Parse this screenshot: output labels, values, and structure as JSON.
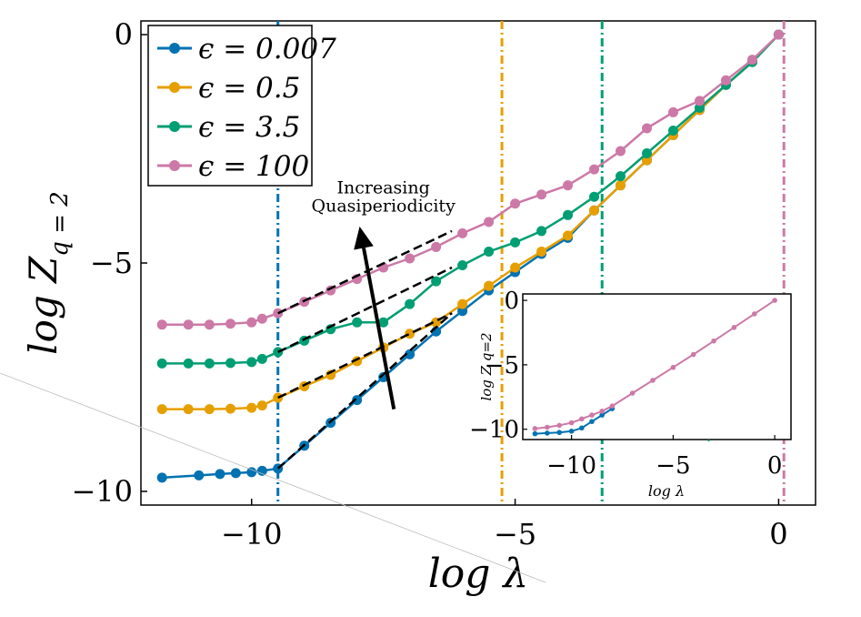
{
  "chart_data": [
    {
      "type": "line",
      "xlabel": "log λ",
      "ylabel_main": "log Z",
      "ylabel_sub": "q = 2",
      "xlim": [
        -12.1,
        0.7
      ],
      "ylim": [
        -10.3,
        0.3
      ],
      "x_ticks": [
        {
          "value": -10,
          "label": "−10"
        },
        {
          "value": -5,
          "label": "−5"
        },
        {
          "value": 0,
          "label": "0"
        }
      ],
      "y_ticks": [
        {
          "value": 0,
          "label": "0"
        },
        {
          "value": -5,
          "label": "−5"
        },
        {
          "value": -10,
          "label": "−10"
        }
      ],
      "grid": false,
      "legend_position": "top-left",
      "series": [
        {
          "name": "ε = 0.007",
          "legend_label": "ϵ = 0.007",
          "color": "#0072B2",
          "x": [
            -11.7,
            -11.0,
            -10.6,
            -10.3,
            -10.0,
            -9.8,
            -9.5,
            -9.0,
            -8.5,
            -8.0,
            -7.5,
            -7.0,
            -6.5,
            -6.0,
            -5.5,
            -5.0,
            -4.5,
            -4.0,
            -3.5,
            -3.0,
            -2.5,
            -2.0,
            -1.5,
            -1.0,
            -0.5,
            0.0
          ],
          "y": [
            -9.7,
            -9.65,
            -9.62,
            -9.6,
            -9.58,
            -9.55,
            -9.5,
            -9.0,
            -8.5,
            -8.0,
            -7.5,
            -7.0,
            -6.5,
            -6.05,
            -5.6,
            -5.2,
            -4.8,
            -4.45,
            -3.85,
            -3.3,
            -2.75,
            -2.2,
            -1.65,
            -1.1,
            -0.6,
            0.0
          ]
        },
        {
          "name": "ε = 0.5",
          "legend_label": "ϵ = 0.5",
          "color": "#E69F00",
          "x": [
            -11.7,
            -11.2,
            -10.8,
            -10.4,
            -10.0,
            -9.8,
            -9.5,
            -9.0,
            -8.5,
            -8.0,
            -7.5,
            -7.0,
            -6.5,
            -6.0,
            -5.5,
            -5.0,
            -4.5,
            -4.0,
            -3.5,
            -3.0,
            -2.5,
            -2.0,
            -1.5,
            -1.0,
            -0.5,
            0.0
          ],
          "y": [
            -8.2,
            -8.2,
            -8.2,
            -8.19,
            -8.17,
            -8.12,
            -7.95,
            -7.7,
            -7.45,
            -7.15,
            -6.85,
            -6.55,
            -6.3,
            -5.9,
            -5.5,
            -5.1,
            -4.75,
            -4.4,
            -3.85,
            -3.3,
            -2.75,
            -2.2,
            -1.65,
            -1.1,
            -0.6,
            0.0
          ]
        },
        {
          "name": "ε = 3.5",
          "legend_label": "ϵ = 3.5",
          "color": "#009E73",
          "x": [
            -11.7,
            -11.2,
            -10.8,
            -10.4,
            -10.0,
            -9.8,
            -9.5,
            -9.0,
            -8.5,
            -8.0,
            -7.5,
            -7.0,
            -6.5,
            -6.0,
            -5.5,
            -5.0,
            -4.5,
            -4.0,
            -3.5,
            -3.0,
            -2.5,
            -2.0,
            -1.5,
            -1.0,
            -0.5,
            0.0
          ],
          "y": [
            -7.2,
            -7.2,
            -7.2,
            -7.19,
            -7.17,
            -7.1,
            -6.95,
            -6.7,
            -6.45,
            -6.3,
            -6.3,
            -5.9,
            -5.4,
            -5.05,
            -4.75,
            -4.55,
            -4.3,
            -3.95,
            -3.55,
            -3.1,
            -2.6,
            -2.1,
            -1.6,
            -1.1,
            -0.6,
            0.0
          ]
        },
        {
          "name": "ε = 100",
          "legend_label": "ϵ = 100",
          "color": "#CC79A7",
          "x": [
            -11.7,
            -11.2,
            -10.8,
            -10.4,
            -10.0,
            -9.8,
            -9.5,
            -9.0,
            -8.5,
            -8.0,
            -7.5,
            -7.0,
            -6.5,
            -6.0,
            -5.5,
            -5.0,
            -4.5,
            -4.0,
            -3.5,
            -3.0,
            -2.5,
            -2.0,
            -1.5,
            -1.0,
            -0.5,
            0.0
          ],
          "y": [
            -6.35,
            -6.35,
            -6.35,
            -6.33,
            -6.3,
            -6.22,
            -6.1,
            -5.85,
            -5.6,
            -5.35,
            -5.1,
            -4.9,
            -4.65,
            -4.35,
            -4.1,
            -3.7,
            -3.5,
            -3.3,
            -2.95,
            -2.55,
            -2.05,
            -1.7,
            -1.45,
            -1.0,
            -0.55,
            0.0
          ]
        }
      ],
      "vlines": [
        {
          "x": -9.5,
          "color": "#0072B2"
        },
        {
          "x": -5.25,
          "color": "#E69F00"
        },
        {
          "x": -3.35,
          "color": "#009E73"
        },
        {
          "x": 0.1,
          "color": "#CC79A7"
        }
      ],
      "fit_lines": [
        {
          "x": [
            -9.5,
            -6.2
          ],
          "y": [
            -9.5,
            -6.1
          ]
        },
        {
          "x": [
            -9.5,
            -6.2
          ],
          "y": [
            -7.95,
            -6.1
          ]
        },
        {
          "x": [
            -9.5,
            -6.2
          ],
          "y": [
            -6.95,
            -5.1
          ]
        },
        {
          "x": [
            -9.5,
            -6.2
          ],
          "y": [
            -6.1,
            -4.3
          ]
        }
      ],
      "annotation": {
        "line1": "Increasing",
        "line2": "Quasiperiodicity",
        "arrow_from": {
          "x": -7.3,
          "y": -8.2
        },
        "arrow_to": {
          "x": -7.95,
          "y": -4.2
        },
        "text_at": {
          "x": -7.5,
          "y": -3.75
        }
      }
    },
    {
      "type": "line",
      "name": "inset",
      "xlabel": "log λ",
      "ylabel": "log Z q=2",
      "xlim": [
        -12.4,
        0.8
      ],
      "ylim": [
        -10.8,
        0.5
      ],
      "x_ticks": [
        {
          "value": -10,
          "label": "−10"
        },
        {
          "value": -5,
          "label": "−5"
        },
        {
          "value": 0,
          "label": "0"
        }
      ],
      "y_ticks": [
        {
          "value": 0,
          "label": "0"
        },
        {
          "value": -5,
          "label": "−5"
        },
        {
          "value": -10,
          "label": "−10"
        }
      ],
      "series": [
        {
          "name": "ε = 0.007",
          "color": "#0072B2",
          "x": [
            -11.8,
            -11.2,
            -10.6,
            -10.0,
            -9.5,
            -9.0,
            -8.5,
            -8.0
          ],
          "y": [
            -10.35,
            -10.3,
            -10.25,
            -10.15,
            -9.9,
            -9.4,
            -8.9,
            -8.4
          ]
        },
        {
          "name": "ε = 100",
          "color": "#CC79A7",
          "x": [
            -11.8,
            -11.2,
            -10.6,
            -10.0,
            -9.5,
            -9.0,
            -8.5,
            -8.0,
            -7.0,
            -6.0,
            -5.0,
            -4.0,
            -3.0,
            -2.0,
            -1.0,
            0.0
          ],
          "y": [
            -9.95,
            -9.85,
            -9.7,
            -9.5,
            -9.2,
            -8.9,
            -8.6,
            -8.2,
            -7.2,
            -6.2,
            -5.2,
            -4.2,
            -3.15,
            -2.1,
            -1.05,
            0.0
          ]
        }
      ],
      "vlines": [
        {
          "x": -3.25,
          "color": "#009E73"
        }
      ]
    }
  ]
}
